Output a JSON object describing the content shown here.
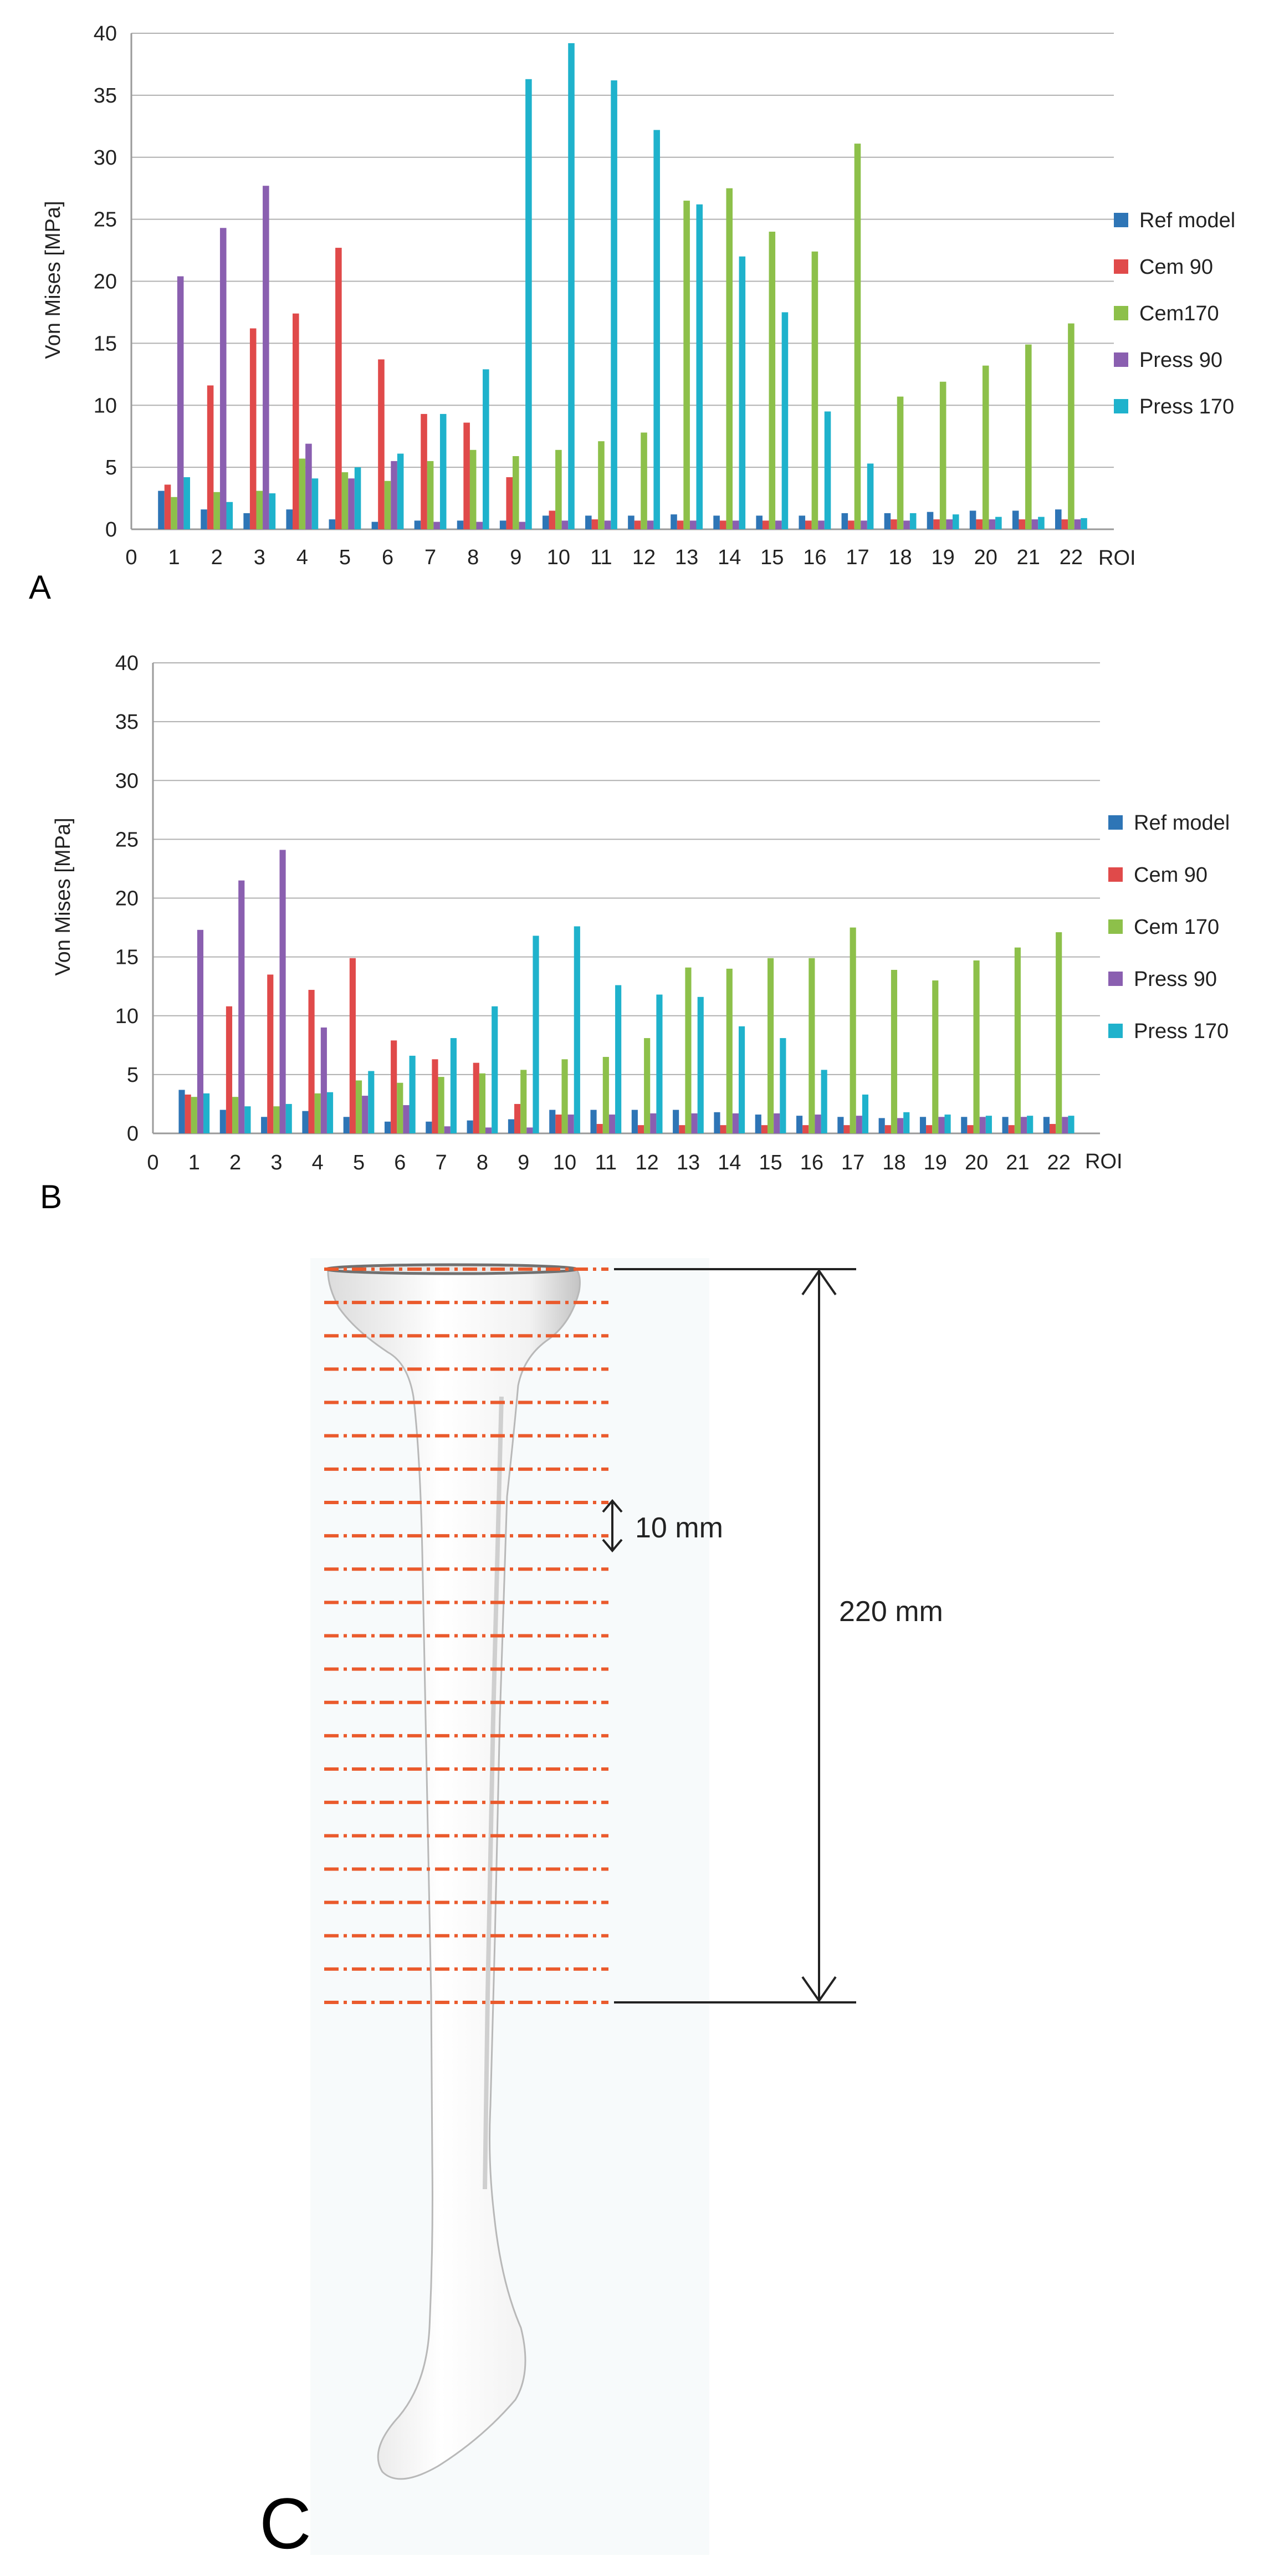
{
  "chart_data": [
    {
      "type": "bar",
      "panel_label": "A",
      "ylabel": "Von Mises [MPa]",
      "xlabel": "ROI",
      "ylim": [
        0,
        40
      ],
      "y_ticks": [
        "0",
        "5",
        "10",
        "15",
        "20",
        "25",
        "30",
        "35",
        "40"
      ],
      "x_ticks": [
        "0",
        "1",
        "2",
        "3",
        "4",
        "5",
        "6",
        "7",
        "8",
        "9",
        "10",
        "11",
        "12",
        "13",
        "14",
        "15",
        "16",
        "17",
        "18",
        "19",
        "20",
        "21",
        "22"
      ],
      "grid": true,
      "legend_position": "right",
      "categories": [
        "1",
        "2",
        "3",
        "4",
        "5",
        "6",
        "7",
        "8",
        "9",
        "10",
        "11",
        "12",
        "13",
        "14",
        "15",
        "16",
        "17",
        "18",
        "19",
        "20",
        "21",
        "22"
      ],
      "series": [
        {
          "name": "Ref model",
          "color": "#2e75b6",
          "values": [
            3.1,
            1.6,
            1.3,
            1.6,
            0.8,
            0.6,
            0.7,
            0.7,
            0.7,
            1.1,
            1.1,
            1.1,
            1.2,
            1.1,
            1.1,
            1.1,
            1.3,
            1.3,
            1.4,
            1.5,
            1.5,
            1.6
          ]
        },
        {
          "name": "Cem 90",
          "color": "#e04a4a",
          "values": [
            3.6,
            11.6,
            16.2,
            17.4,
            22.7,
            13.7,
            9.3,
            8.6,
            4.2,
            1.5,
            0.8,
            0.7,
            0.7,
            0.7,
            0.7,
            0.7,
            0.7,
            0.8,
            0.8,
            0.8,
            0.8,
            0.8
          ]
        },
        {
          "name": "Cem170",
          "color": "#8dc04a",
          "values": [
            2.6,
            3.0,
            3.1,
            5.7,
            4.6,
            3.9,
            5.5,
            6.4,
            5.9,
            6.4,
            7.1,
            7.8,
            26.5,
            27.5,
            24.0,
            22.4,
            31.1,
            10.7,
            11.9,
            13.2,
            14.9,
            16.6
          ]
        },
        {
          "name": "Press 90",
          "color": "#8a5fb0",
          "values": [
            20.4,
            24.3,
            27.7,
            6.9,
            4.1,
            5.5,
            0.6,
            0.6,
            0.6,
            0.7,
            0.7,
            0.7,
            0.7,
            0.7,
            0.7,
            0.7,
            0.7,
            0.7,
            0.8,
            0.8,
            0.8,
            0.8
          ]
        },
        {
          "name": "Press 170",
          "color": "#1fb2cc",
          "values": [
            4.2,
            2.2,
            2.9,
            4.1,
            5.0,
            6.1,
            9.3,
            12.9,
            36.3,
            39.2,
            36.2,
            32.2,
            26.2,
            22.0,
            17.5,
            9.5,
            5.3,
            1.3,
            1.2,
            1.0,
            1.0,
            0.9
          ]
        }
      ]
    },
    {
      "type": "bar",
      "panel_label": "B",
      "ylabel": "Von Mises [MPa]",
      "xlabel": "ROI",
      "ylim": [
        0,
        40
      ],
      "y_ticks": [
        "0",
        "5",
        "10",
        "15",
        "20",
        "25",
        "30",
        "35",
        "40"
      ],
      "x_ticks": [
        "0",
        "1",
        "2",
        "3",
        "4",
        "5",
        "6",
        "7",
        "8",
        "9",
        "10",
        "11",
        "12",
        "13",
        "14",
        "15",
        "16",
        "17",
        "18",
        "19",
        "20",
        "21",
        "22"
      ],
      "grid": true,
      "legend_position": "right",
      "categories": [
        "1",
        "2",
        "3",
        "4",
        "5",
        "6",
        "7",
        "8",
        "9",
        "10",
        "11",
        "12",
        "13",
        "14",
        "15",
        "16",
        "17",
        "18",
        "19",
        "20",
        "21",
        "22"
      ],
      "series": [
        {
          "name": "Ref model",
          "color": "#2e75b6",
          "values": [
            3.7,
            2.0,
            1.4,
            1.9,
            1.4,
            1.0,
            1.0,
            1.1,
            1.2,
            2.0,
            2.0,
            2.0,
            2.0,
            1.8,
            1.6,
            1.5,
            1.4,
            1.3,
            1.4,
            1.4,
            1.4,
            1.4
          ]
        },
        {
          "name": "Cem 90",
          "color": "#e04a4a",
          "values": [
            3.3,
            10.8,
            13.5,
            12.2,
            14.9,
            7.9,
            6.3,
            6.0,
            2.5,
            1.6,
            0.8,
            0.7,
            0.7,
            0.7,
            0.7,
            0.7,
            0.7,
            0.7,
            0.7,
            0.7,
            0.7,
            0.8
          ]
        },
        {
          "name": "Cem 170",
          "color": "#8dc04a",
          "values": [
            3.1,
            3.1,
            2.3,
            3.4,
            4.5,
            4.3,
            4.8,
            5.1,
            5.4,
            6.3,
            6.5,
            8.1,
            14.1,
            14.0,
            14.9,
            14.9,
            17.5,
            13.9,
            13.0,
            14.7,
            15.8,
            17.1
          ]
        },
        {
          "name": "Press 90",
          "color": "#8a5fb0",
          "values": [
            17.3,
            21.5,
            24.1,
            9.0,
            3.2,
            2.4,
            0.6,
            0.5,
            0.5,
            1.6,
            1.6,
            1.7,
            1.7,
            1.7,
            1.7,
            1.6,
            1.5,
            1.3,
            1.4,
            1.4,
            1.4,
            1.4
          ]
        },
        {
          "name": "Press 170",
          "color": "#1fb2cc",
          "values": [
            3.4,
            2.3,
            2.5,
            3.5,
            5.3,
            6.6,
            8.1,
            10.8,
            16.8,
            17.6,
            12.6,
            11.8,
            11.6,
            9.1,
            8.1,
            5.4,
            3.3,
            1.8,
            1.6,
            1.5,
            1.5,
            1.5
          ]
        }
      ]
    }
  ],
  "panel_c": {
    "label": "C",
    "spacing_label": "10 mm",
    "length_label": "220 mm"
  }
}
